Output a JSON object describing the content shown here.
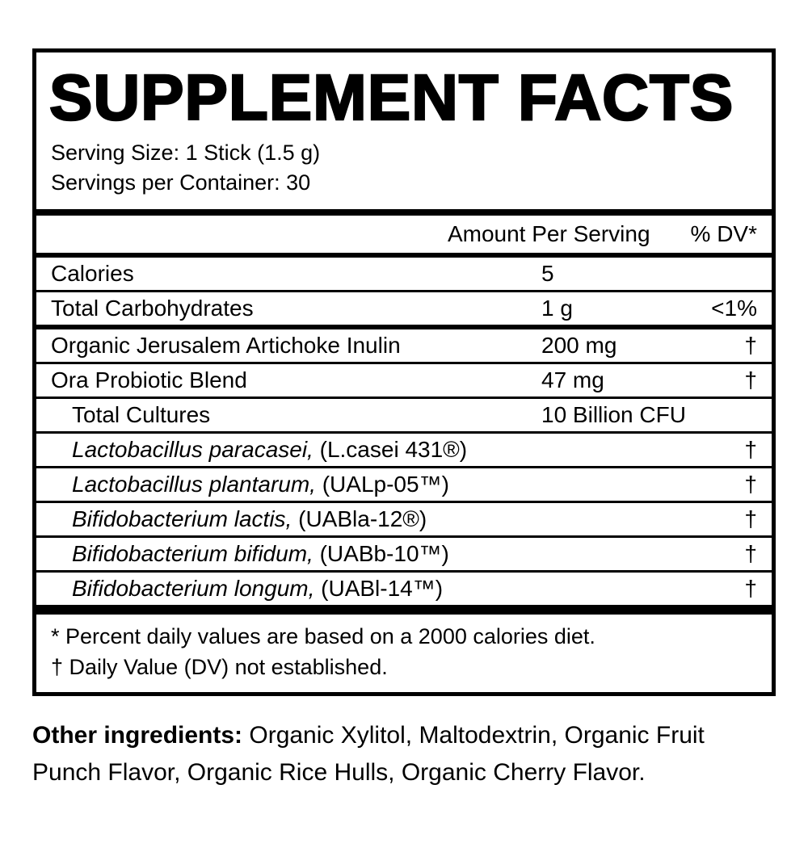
{
  "panel": {
    "title": "SUPPLEMENT FACTS",
    "serving_size": "Serving Size: 1 Stick (1.5 g)",
    "servings_per_container": "Servings per Container: 30"
  },
  "table": {
    "columns": {
      "amount": "Amount Per Serving",
      "dv": "% DV*"
    },
    "rows": [
      {
        "italic": "",
        "text": "Calories",
        "amount": "5",
        "dv": "",
        "indent": false,
        "rule": "none"
      },
      {
        "italic": "",
        "text": "Total Carbohydrates",
        "amount": "1 g",
        "dv": "<1%",
        "indent": false,
        "rule": "thin"
      },
      {
        "italic": "",
        "text": "Organic Jerusalem Artichoke Inulin",
        "amount": "200 mg",
        "dv": "†",
        "indent": false,
        "rule": "medium"
      },
      {
        "italic": "",
        "text": "Ora Probiotic Blend",
        "amount": "47 mg",
        "dv": "†",
        "indent": false,
        "rule": "thin"
      },
      {
        "italic": "",
        "text": "Total Cultures",
        "amount": "10 Billion CFU",
        "dv": "",
        "indent": true,
        "rule": "thin"
      },
      {
        "italic": "Lactobacillus paracasei,",
        "text": " (L.casei 431®)",
        "amount": "",
        "dv": "†",
        "indent": true,
        "rule": "thin"
      },
      {
        "italic": "Lactobacillus plantarum,",
        "text": " (UALp-05™)",
        "amount": "",
        "dv": "†",
        "indent": true,
        "rule": "thin"
      },
      {
        "italic": "Bifidobacterium lactis,",
        "text": " (UABla-12®)",
        "amount": "",
        "dv": "†",
        "indent": true,
        "rule": "thin"
      },
      {
        "italic": "Bifidobacterium bifidum,",
        "text": " (UABb-10™)",
        "amount": "",
        "dv": "†",
        "indent": true,
        "rule": "thin"
      },
      {
        "italic": "Bifidobacterium longum,",
        "text": " (UABl-14™)",
        "amount": "",
        "dv": "†",
        "indent": true,
        "rule": "thin"
      }
    ]
  },
  "footnotes": [
    "* Percent daily values are based on a 2000 calories diet.",
    "† Daily Value (DV) not established."
  ],
  "other_ingredients": {
    "label": "Other ingredients:",
    "text": " Organic Xylitol, Maltodextrin, Organic Fruit Punch Flavor, Organic Rice Hulls, Organic Cherry Flavor."
  },
  "colors": {
    "ink": "#000000",
    "background": "#ffffff"
  }
}
